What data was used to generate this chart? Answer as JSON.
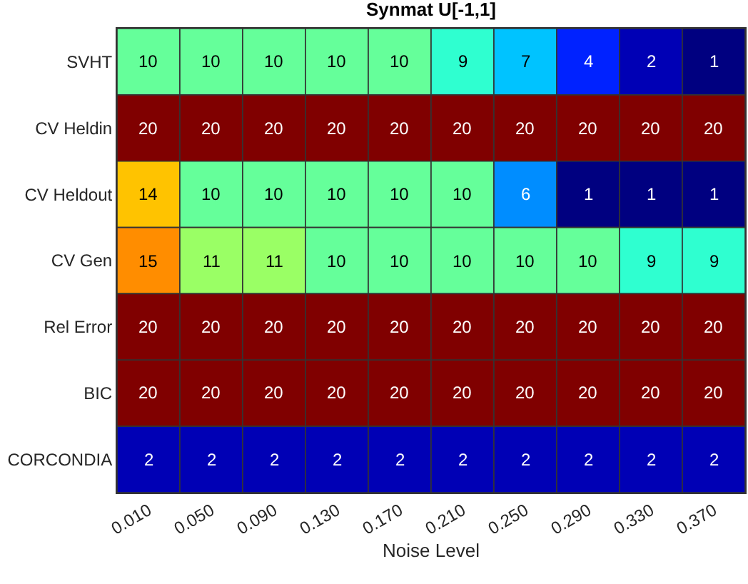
{
  "chart_data": {
    "type": "heatmap",
    "title": "Synmat U[-1,1]",
    "xlabel": "Noise Level",
    "categories": [
      "0.010",
      "0.050",
      "0.090",
      "0.130",
      "0.170",
      "0.210",
      "0.250",
      "0.290",
      "0.330",
      "0.370"
    ],
    "y_categories": [
      "SVHT",
      "CV Heldin",
      "CV Heldout",
      "CV Gen",
      "Rel Error",
      "BIC",
      "CORCONDIA"
    ],
    "cells": [
      [
        10,
        10,
        10,
        10,
        10,
        9,
        7,
        4,
        2,
        1
      ],
      [
        20,
        20,
        20,
        20,
        20,
        20,
        20,
        20,
        20,
        20
      ],
      [
        14,
        10,
        10,
        10,
        10,
        10,
        6,
        1,
        1,
        1
      ],
      [
        15,
        11,
        11,
        10,
        10,
        10,
        10,
        10,
        9,
        9
      ],
      [
        20,
        20,
        20,
        20,
        20,
        20,
        20,
        20,
        20,
        20
      ],
      [
        20,
        20,
        20,
        20,
        20,
        20,
        20,
        20,
        20,
        20
      ],
      [
        2,
        2,
        2,
        2,
        2,
        2,
        2,
        2,
        2,
        2
      ]
    ],
    "data_labels": true
  }
}
